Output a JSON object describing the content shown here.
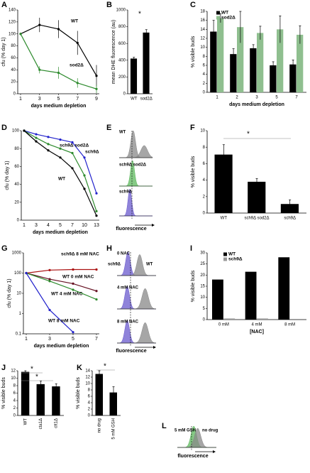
{
  "chart_data": [
    {
      "panel": "A",
      "type": "line",
      "xlabel": "days medium depletion",
      "ylabel": "cfu (% day 1)",
      "x": [
        1,
        3,
        5,
        7,
        9
      ],
      "xlim": [
        1,
        9
      ],
      "xticks": [
        1,
        3,
        5,
        7,
        9
      ],
      "ylim": [
        0,
        140
      ],
      "yticks": [
        0,
        20,
        40,
        60,
        80,
        100,
        120,
        140
      ],
      "series": [
        {
          "name": "WT",
          "color": "#000000",
          "values": [
            100,
            115,
            108,
            85,
            30
          ],
          "errors": [
            0,
            12,
            15,
            20,
            18
          ]
        },
        {
          "name": "sod2Δ",
          "color": "#2e8b2e",
          "values": [
            100,
            40,
            35,
            18,
            8
          ],
          "errors": [
            0,
            6,
            10,
            8,
            7
          ]
        }
      ]
    },
    {
      "panel": "B",
      "type": "bar",
      "ylabel": "mean DHE fluorescence (au)",
      "categories": [
        "WT",
        "sod2Δ"
      ],
      "values": [
        420,
        730
      ],
      "errors": [
        15,
        35
      ],
      "color": "#000000",
      "ylim": [
        0,
        1000
      ],
      "yticks": [
        0,
        200,
        400,
        600,
        800,
        1000
      ],
      "annotations": [
        "*"
      ]
    },
    {
      "panel": "C",
      "type": "bar",
      "xlabel": "days medium depletion",
      "ylabel": "% visible buds",
      "categories": [
        "1",
        "2",
        "3",
        "5",
        "7"
      ],
      "ylim": [
        0,
        18
      ],
      "yticks": [
        0,
        2,
        4,
        6,
        8,
        10,
        12,
        14,
        16,
        18
      ],
      "series": [
        {
          "name": "WT",
          "color": "#000000",
          "values": [
            13.5,
            8.5,
            9.8,
            6,
            6.2
          ],
          "errors": [
            2.5,
            1.2,
            0.8,
            0.8,
            1
          ]
        },
        {
          "name": "sod2Δ",
          "color": "#8fbf8f",
          "values": [
            16.5,
            14.5,
            13.2,
            14,
            12.8
          ],
          "errors": [
            1,
            3.5,
            1.5,
            3,
            2
          ]
        }
      ]
    },
    {
      "panel": "D",
      "type": "line",
      "xlabel": "days medium depletion",
      "ylabel": "cfu (% day 1)",
      "categories": [
        "1",
        "3",
        "4",
        "5",
        "7",
        "10",
        "13"
      ],
      "ylim": [
        0,
        100
      ],
      "yticks": [
        0,
        20,
        40,
        60,
        80,
        100
      ],
      "series": [
        {
          "name": "sch9Δ",
          "color": "#2222cc",
          "values": [
            100,
            96,
            93,
            90,
            87,
            70,
            30
          ]
        },
        {
          "name": "sch9Δ sod2Δ",
          "color": "#2e8b2e",
          "values": [
            100,
            92,
            85,
            80,
            75,
            50,
            10
          ]
        },
        {
          "name": "WT",
          "color": "#000000",
          "values": [
            100,
            88,
            78,
            70,
            58,
            35,
            5
          ]
        }
      ]
    },
    {
      "panel": "E",
      "type": "flow",
      "xlabel": "fluorescence",
      "labels": [
        "WT",
        "sch9Δ sod2Δ",
        "sch9Δ"
      ]
    },
    {
      "panel": "F",
      "type": "bar",
      "ylabel": "% visible buds",
      "categories": [
        "WT",
        "sch9Δ sod2Δ",
        "sch9Δ"
      ],
      "values": [
        7.1,
        3.8,
        1.1
      ],
      "errors": [
        1.2,
        0.4,
        0.5
      ],
      "color": "#000000",
      "ylim": [
        0,
        10
      ],
      "yticks": [
        0,
        2,
        4,
        6,
        8,
        10
      ],
      "annotations": [
        "*"
      ]
    },
    {
      "panel": "G",
      "type": "line",
      "xlabel": "days medium depletion",
      "ylabel": "cfu (% day 1)",
      "log": true,
      "x": [
        1,
        3,
        5,
        7
      ],
      "xlim": [
        1,
        7
      ],
      "xticks": [
        1,
        3,
        5,
        7
      ],
      "ylim": [
        0.1,
        1000
      ],
      "yticks": [
        0.1,
        1,
        10,
        100,
        1000
      ],
      "series": [
        {
          "name": "sch9Δ 8 mM NAC",
          "color": "#aa1111",
          "values": [
            100,
            140,
            150,
            150
          ]
        },
        {
          "name": "WT 0 mM NAC",
          "color": "#661122",
          "values": [
            100,
            50,
            30,
            13
          ]
        },
        {
          "name": "WT 4 mM NAC",
          "color": "#2e8b2e",
          "values": [
            100,
            40,
            15,
            5
          ]
        },
        {
          "name": "WT 8 mM NAC",
          "color": "#2222cc",
          "values": [
            100,
            1.5,
            0.12,
            null
          ]
        }
      ]
    },
    {
      "panel": "H",
      "type": "flow",
      "xlabel": "fluorescence",
      "labels": [
        "0 NAC",
        "sch9Δ",
        "WT",
        "4 mM NAC",
        "8 mM NAC"
      ]
    },
    {
      "panel": "I",
      "type": "bar",
      "xlabel": "[NAC]",
      "ylabel": "% visible buds",
      "categories": [
        "0 mM",
        "4 mM",
        "8 mM"
      ],
      "ylim": [
        0,
        30
      ],
      "yticks": [
        0,
        5,
        10,
        15,
        20,
        25,
        30
      ],
      "series": [
        {
          "name": "WT",
          "color": "#000000",
          "values": [
            18,
            21.5,
            28
          ]
        },
        {
          "name": "sch9Δ",
          "color": "#999999",
          "values": [
            0.5,
            0.5,
            0.3
          ]
        }
      ]
    },
    {
      "panel": "J",
      "type": "bar",
      "ylabel": "% visible buds",
      "categories": [
        "WT",
        "cta1Δ",
        "ctt1Δ"
      ],
      "values": [
        11.7,
        8.4,
        7.8
      ],
      "errors": [
        0.3,
        0.8,
        0.7
      ],
      "color": "#000000",
      "ylim": [
        0,
        12
      ],
      "yticks": [
        0,
        2,
        4,
        6,
        8,
        10,
        12
      ],
      "annotations": [
        "*",
        "*"
      ]
    },
    {
      "panel": "K",
      "type": "bar",
      "ylabel": "% visible buds",
      "categories": [
        "no drug",
        "5 mM GSH"
      ],
      "values": [
        13,
        7.2
      ],
      "errors": [
        1,
        1.8
      ],
      "color": "#000000",
      "ylim": [
        0,
        14
      ],
      "yticks": [
        0,
        2,
        4,
        6,
        8,
        10,
        12,
        14
      ],
      "annotations": [
        "*"
      ]
    },
    {
      "panel": "L",
      "type": "flow",
      "xlabel": "fluorescence",
      "labels": [
        "5 mM GSH",
        "no drug"
      ]
    }
  ]
}
